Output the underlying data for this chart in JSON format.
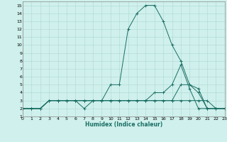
{
  "xlabel": "Humidex (Indice chaleur)",
  "xlim": [
    0,
    23
  ],
  "ylim": [
    1,
    15.5
  ],
  "xticks": [
    0,
    1,
    2,
    3,
    4,
    5,
    6,
    7,
    8,
    9,
    10,
    11,
    12,
    13,
    14,
    15,
    16,
    17,
    18,
    19,
    20,
    21,
    22,
    23
  ],
  "yticks": [
    1,
    2,
    3,
    4,
    5,
    6,
    7,
    8,
    9,
    10,
    11,
    12,
    13,
    14,
    15
  ],
  "bg_color": "#cff0ec",
  "grid_color": "#aed8d3",
  "line_color": "#1a6e64",
  "series": [
    {
      "x": [
        0,
        1,
        2,
        3,
        4,
        5,
        6,
        7,
        8,
        9,
        10,
        11,
        12,
        13,
        14,
        15,
        16,
        17,
        18,
        19,
        20,
        21,
        22,
        23
      ],
      "y": [
        2,
        2,
        2,
        3,
        3,
        3,
        3,
        3,
        3,
        3,
        5,
        5,
        12,
        14,
        15,
        15,
        13,
        10,
        8,
        5,
        4,
        2,
        2,
        2
      ]
    },
    {
      "x": [
        0,
        1,
        2,
        3,
        4,
        5,
        6,
        7,
        8,
        9,
        10,
        11,
        12,
        13,
        14,
        15,
        16,
        17,
        18,
        19,
        20,
        21,
        22,
        23
      ],
      "y": [
        2,
        2,
        2,
        3,
        3,
        3,
        3,
        2,
        3,
        3,
        3,
        3,
        3,
        3,
        3,
        3,
        3,
        3,
        5,
        5,
        4.5,
        2,
        2,
        2
      ]
    },
    {
      "x": [
        0,
        1,
        2,
        3,
        4,
        5,
        6,
        7,
        8,
        9,
        10,
        11,
        12,
        13,
        14,
        15,
        16,
        17,
        18,
        19,
        20,
        21,
        22,
        23
      ],
      "y": [
        2,
        2,
        2,
        3,
        3,
        3,
        3,
        3,
        3,
        3,
        3,
        3,
        3,
        3,
        3,
        3,
        3,
        3,
        3,
        3,
        3,
        3,
        2,
        2
      ]
    },
    {
      "x": [
        0,
        1,
        2,
        3,
        4,
        5,
        6,
        7,
        8,
        9,
        10,
        11,
        12,
        13,
        14,
        15,
        16,
        17,
        18,
        19,
        20,
        21,
        22,
        23
      ],
      "y": [
        2,
        2,
        2,
        3,
        3,
        3,
        3,
        3,
        3,
        3,
        3,
        3,
        3,
        3,
        3,
        4,
        4,
        5,
        7.5,
        4.5,
        2,
        2,
        2,
        2
      ]
    }
  ]
}
